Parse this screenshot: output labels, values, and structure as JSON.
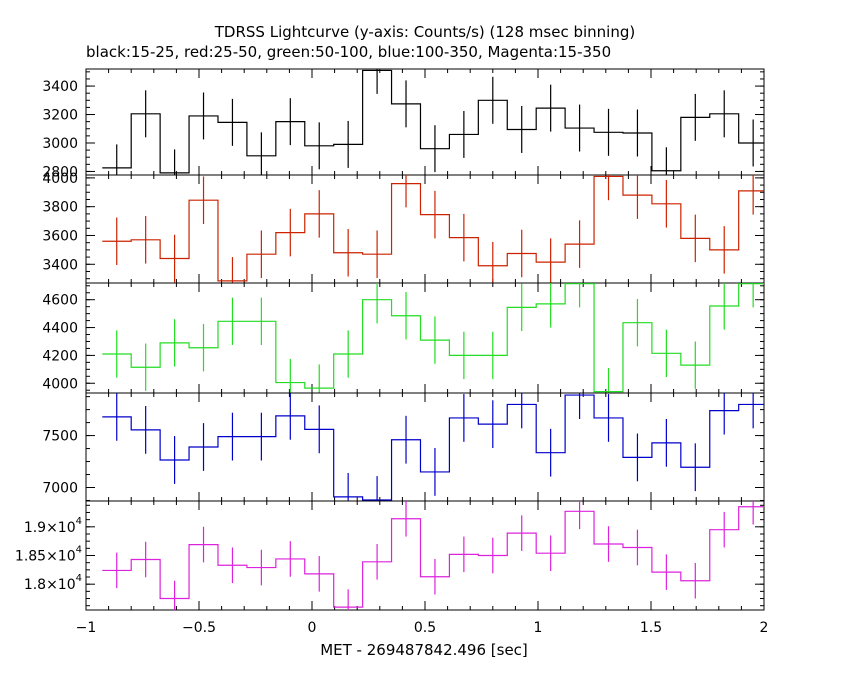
{
  "title": "TDRSS Lightcurve (y-axis: Counts/s) (128 msec binning)",
  "subtitle": "black:15-25, red:25-50, green:50-100, blue:100-350, Magenta:15-350",
  "chart_data": {
    "type": "line",
    "title": "TDRSS Lightcurve (y-axis: Counts/s) (128 msec binning)",
    "subtitle": "black:15-25, red:25-50, green:50-100, blue:100-350, Magenta:15-350",
    "xlabel": "MET - 269487842.496 [sec]",
    "xlim": [
      -1,
      2
    ],
    "x_ticks": [
      -1,
      -0.5,
      0,
      0.5,
      1,
      1.5,
      2
    ],
    "x_tick_labels": [
      "−1",
      "−0.5",
      "0",
      "0.5",
      "1",
      "1.5",
      "2"
    ],
    "bin_width": 0.128,
    "x": [
      -0.864,
      -0.736,
      -0.608,
      -0.48,
      -0.352,
      -0.224,
      -0.096,
      0.032,
      0.16,
      0.288,
      0.416,
      0.544,
      0.672,
      0.8,
      0.928,
      1.056,
      1.184,
      1.312,
      1.44,
      1.568,
      1.696,
      1.824,
      1.952
    ],
    "panels": [
      {
        "name": "black:15-25",
        "color": "#000000",
        "ylim": [
          2775,
          3520
        ],
        "y_ticks": [
          2800,
          3000,
          3200,
          3400
        ],
        "y_tick_labels": [
          "2800",
          "3000",
          "3200",
          "3400"
        ],
        "values": [
          2825,
          3205,
          2790,
          3190,
          3145,
          2910,
          3150,
          2980,
          2990,
          3510,
          3275,
          2960,
          3060,
          3300,
          3095,
          3245,
          3105,
          3075,
          3070,
          2805,
          3180,
          3205,
          3000
        ],
        "errors": [
          165,
          165,
          165,
          165,
          165,
          165,
          165,
          165,
          165,
          165,
          165,
          165,
          165,
          165,
          165,
          165,
          165,
          165,
          165,
          165,
          165,
          165,
          165
        ]
      },
      {
        "name": "red:25-50",
        "color": "#cc2200",
        "ylim": [
          3270,
          4020
        ],
        "y_ticks": [
          3400,
          3600,
          3800,
          4000
        ],
        "y_tick_labels": [
          "3400",
          "3600",
          "3800",
          "4000"
        ],
        "values": [
          3560,
          3570,
          3440,
          3845,
          3285,
          3470,
          3620,
          3750,
          3480,
          3470,
          3960,
          3745,
          3585,
          3390,
          3475,
          3415,
          3540,
          4010,
          3880,
          3820,
          3580,
          3500,
          3910
        ],
        "errors": [
          165,
          165,
          165,
          165,
          165,
          165,
          165,
          165,
          165,
          165,
          165,
          165,
          165,
          165,
          165,
          165,
          165,
          165,
          165,
          165,
          165,
          165,
          165
        ]
      },
      {
        "name": "green:50-100",
        "color": "#22dd22",
        "ylim": [
          3930,
          4720
        ],
        "y_ticks": [
          4000,
          4200,
          4400,
          4600
        ],
        "y_tick_labels": [
          "4000",
          "4200",
          "4400",
          "4600"
        ],
        "values": [
          4210,
          4115,
          4290,
          4255,
          4445,
          4445,
          4005,
          3965,
          4210,
          4600,
          4485,
          4310,
          4200,
          4200,
          4545,
          4570,
          4715,
          3940,
          4435,
          4215,
          4130,
          4555,
          4715
        ],
        "errors": [
          170,
          170,
          170,
          170,
          170,
          170,
          170,
          170,
          170,
          170,
          170,
          170,
          170,
          170,
          170,
          170,
          170,
          170,
          170,
          170,
          170,
          170,
          170
        ]
      },
      {
        "name": "blue:100-350",
        "color": "#0000cc",
        "ylim": [
          6870,
          7910
        ],
        "y_ticks": [
          7000,
          7500
        ],
        "y_tick_labels": [
          "7000",
          "7500"
        ],
        "values": [
          7680,
          7555,
          7265,
          7390,
          7490,
          7490,
          7690,
          7560,
          6910,
          6880,
          7460,
          7150,
          7670,
          7610,
          7800,
          7335,
          7890,
          7670,
          7290,
          7430,
          7195,
          7740,
          7800
        ],
        "errors": [
          230,
          230,
          230,
          230,
          230,
          230,
          230,
          230,
          230,
          230,
          230,
          230,
          230,
          230,
          230,
          230,
          230,
          230,
          230,
          230,
          230,
          230,
          230
        ]
      },
      {
        "name": "Magenta:15-350",
        "color": "#dd22dd",
        "ylim": [
          17550,
          19450
        ],
        "y_ticks": [
          18000,
          18500,
          19000
        ],
        "y_tick_labels": [
          "1.8×10",
          "1.85×10",
          "1.9×10"
        ],
        "y_tick_exponent": "4",
        "values": [
          18240,
          18430,
          17750,
          18690,
          18330,
          18290,
          18440,
          18180,
          17600,
          18390,
          19140,
          18130,
          18520,
          18500,
          18890,
          18540,
          19270,
          18700,
          18640,
          18210,
          18060,
          18950,
          19350
        ],
        "errors": [
          310,
          310,
          310,
          310,
          310,
          310,
          310,
          310,
          310,
          310,
          310,
          310,
          310,
          310,
          310,
          310,
          310,
          310,
          310,
          310,
          310,
          310,
          310
        ]
      }
    ]
  }
}
